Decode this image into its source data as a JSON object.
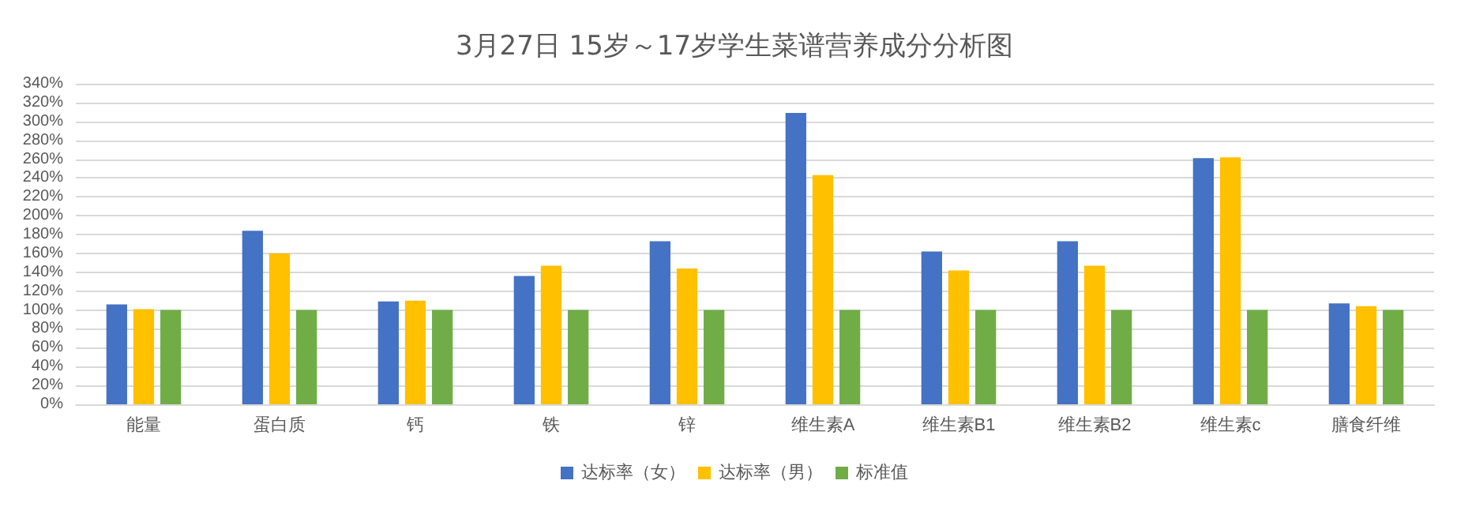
{
  "chart_data": {
    "type": "bar",
    "title": "3月27日 15岁～17岁学生菜谱营养成分分析图",
    "categories": [
      "能量",
      "蛋白质",
      "钙",
      "铁",
      "锌",
      "维生素A",
      "维生素B1",
      "维生素B2",
      "维生素c",
      "膳食纤维"
    ],
    "series": [
      {
        "name": "达标率（女）",
        "color": "#4472c4",
        "values": [
          106,
          184,
          109,
          136,
          173,
          309,
          162,
          173,
          261,
          107
        ]
      },
      {
        "name": "达标率（男）",
        "color": "#ffc000",
        "values": [
          101,
          160,
          110,
          147,
          144,
          243,
          142,
          147,
          262,
          104
        ]
      },
      {
        "name": "标准值",
        "color": "#70ad47",
        "values": [
          100,
          100,
          100,
          100,
          100,
          100,
          100,
          100,
          100,
          100
        ]
      }
    ],
    "ylim": [
      0,
      340
    ],
    "yticks": [
      {
        "value": 0,
        "label": "0%"
      },
      {
        "value": 20,
        "label": "20%"
      },
      {
        "value": 40,
        "label": "40%"
      },
      {
        "value": 60,
        "label": "60%"
      },
      {
        "value": 80,
        "label": "80%"
      },
      {
        "value": 100,
        "label": "100%"
      },
      {
        "value": 120,
        "label": "120%"
      },
      {
        "value": 140,
        "label": "140%"
      },
      {
        "value": 160,
        "label": "160%"
      },
      {
        "value": 180,
        "label": "180%"
      },
      {
        "value": 200,
        "label": "200%"
      },
      {
        "value": 220,
        "label": "220%"
      },
      {
        "value": 240,
        "label": "240%"
      },
      {
        "value": 260,
        "label": "260%"
      },
      {
        "value": 280,
        "label": "280%"
      },
      {
        "value": 300,
        "label": "300%"
      },
      {
        "value": 320,
        "label": "320%"
      },
      {
        "value": 340,
        "label": "340%"
      }
    ],
    "grid": "y",
    "legend": "bottom"
  }
}
